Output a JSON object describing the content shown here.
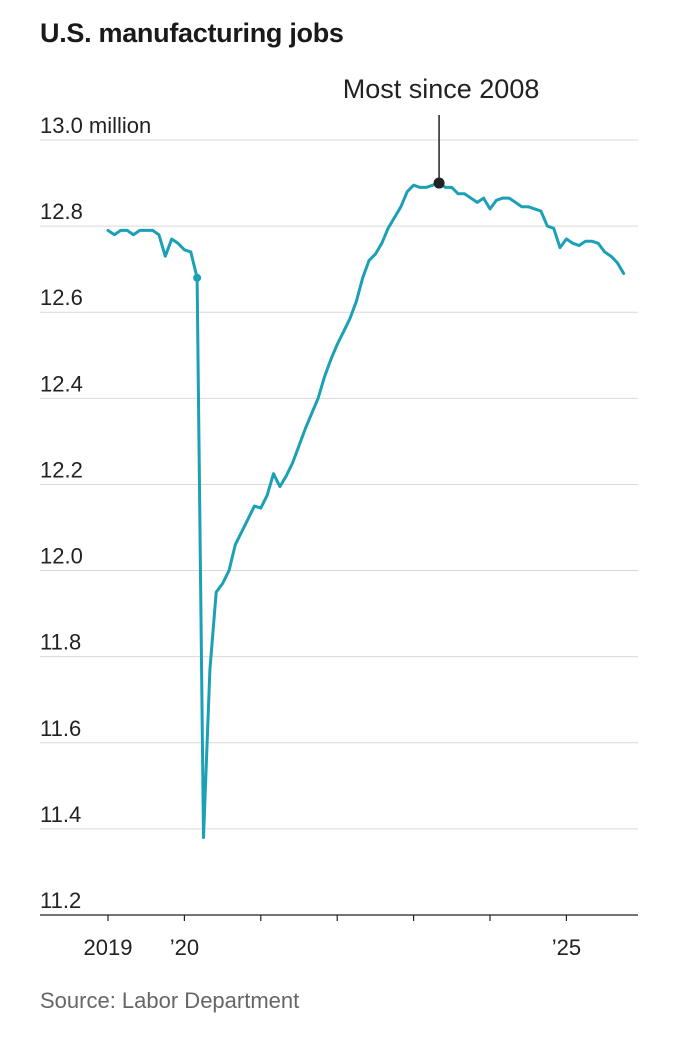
{
  "title": "U.S. manufacturing jobs",
  "source": "Source: Labor Department",
  "colors": {
    "line": "#1ba0b5",
    "grid": "#d9d9d9",
    "annotation": "#222222"
  },
  "chart_data": {
    "type": "line",
    "title": "U.S. manufacturing jobs",
    "xlabel": "",
    "ylabel": "",
    "y_unit": "million",
    "ylim": [
      11.2,
      13.0
    ],
    "yticks": [
      13.0,
      12.8,
      12.6,
      12.4,
      12.2,
      12.0,
      11.8,
      11.6,
      11.4,
      11.2
    ],
    "ytick_labels": [
      "13.0 million",
      "12.8",
      "12.6",
      "12.4",
      "12.2",
      "12.0",
      "11.8",
      "11.6",
      "11.4",
      "11.2"
    ],
    "xlim": [
      "2019-01",
      "2026-01"
    ],
    "xticks": [
      "2019",
      "2020",
      "2021",
      "2022",
      "2023",
      "2024",
      "2025",
      "2026"
    ],
    "xtick_labels": [
      "2019",
      "’20",
      "",
      "",
      "",
      "",
      "’25",
      ""
    ],
    "grid": true,
    "legend": "none",
    "annotation": {
      "text": "Most since 2008",
      "date": "2023-05",
      "value": 12.9
    },
    "marked_points": [
      {
        "date": "2020-03",
        "value": 12.68
      }
    ],
    "series": [
      {
        "dates": [
          "2019-01",
          "2019-02",
          "2019-03",
          "2019-04",
          "2019-05",
          "2019-06",
          "2019-07",
          "2019-08",
          "2019-09",
          "2019-10",
          "2019-11",
          "2019-12",
          "2020-01",
          "2020-02",
          "2020-03",
          "2020-04",
          "2020-05",
          "2020-06",
          "2020-07",
          "2020-08",
          "2020-09",
          "2020-10",
          "2020-11",
          "2020-12",
          "2021-01",
          "2021-02",
          "2021-03",
          "2021-04",
          "2021-05",
          "2021-06",
          "2021-07",
          "2021-08",
          "2021-09",
          "2021-10",
          "2021-11",
          "2021-12",
          "2022-01",
          "2022-02",
          "2022-03",
          "2022-04",
          "2022-05",
          "2022-06",
          "2022-07",
          "2022-08",
          "2022-09",
          "2022-10",
          "2022-11",
          "2022-12",
          "2023-01",
          "2023-02",
          "2023-03",
          "2023-04",
          "2023-05",
          "2023-06",
          "2023-07",
          "2023-08",
          "2023-09",
          "2023-10",
          "2023-11",
          "2023-12",
          "2024-01",
          "2024-02",
          "2024-03",
          "2024-04",
          "2024-05",
          "2024-06",
          "2024-07",
          "2024-08",
          "2024-09",
          "2024-10",
          "2024-11",
          "2024-12",
          "2025-01",
          "2025-02",
          "2025-03",
          "2025-04",
          "2025-05",
          "2025-06",
          "2025-07",
          "2025-08",
          "2025-09",
          "2025-10"
        ],
        "values": [
          12.79,
          12.78,
          12.79,
          12.79,
          12.78,
          12.79,
          12.79,
          12.79,
          12.78,
          12.73,
          12.77,
          12.76,
          12.745,
          12.74,
          12.68,
          11.38,
          11.77,
          11.95,
          11.97,
          12.0,
          12.06,
          12.09,
          12.12,
          12.15,
          12.145,
          12.175,
          12.225,
          12.195,
          12.22,
          12.25,
          12.29,
          12.33,
          12.365,
          12.4,
          12.45,
          12.49,
          12.525,
          12.555,
          12.585,
          12.625,
          12.68,
          12.72,
          12.735,
          12.76,
          12.795,
          12.82,
          12.845,
          12.88,
          12.895,
          12.89,
          12.89,
          12.895,
          12.9,
          12.89,
          12.89,
          12.875,
          12.875,
          12.865,
          12.855,
          12.865,
          12.84,
          12.86,
          12.865,
          12.865,
          12.855,
          12.845,
          12.845,
          12.84,
          12.835,
          12.8,
          12.795,
          12.75,
          12.77,
          12.76,
          12.755,
          12.765,
          12.765,
          12.76,
          12.74,
          12.73,
          12.715,
          12.69
        ]
      }
    ]
  }
}
